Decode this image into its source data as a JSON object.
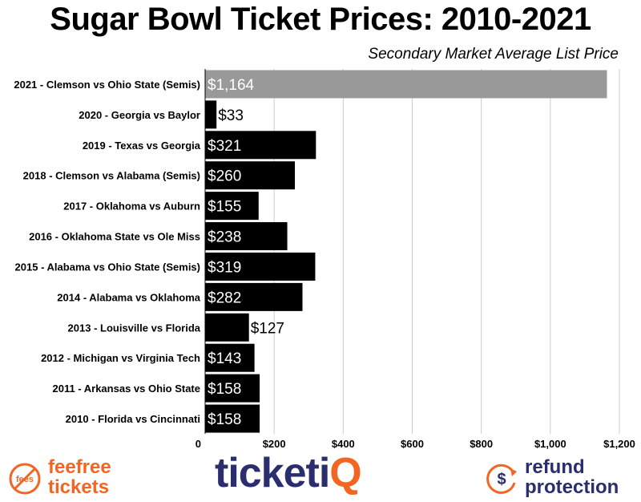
{
  "chart_data": {
    "type": "bar",
    "orientation": "horizontal",
    "title": "Sugar Bowl Ticket Prices: 2010-2021",
    "subtitle": "Secondary Market Average List Price",
    "categories": [
      "2021 - Clemson vs Ohio State (Semis)",
      "2020 - Georgia vs Baylor",
      "2019 - Texas vs Georgia",
      "2018 - Clemson vs Alabama (Semis)",
      "2017 - Oklahoma vs Auburn",
      "2016 - Oklahoma State vs Ole Miss",
      "2015 - Alabama vs Ohio State (Semis)",
      "2014 - Alabama vs Oklahoma",
      "2013 - Louisville vs Florida",
      "2012 - Michigan vs Virginia Tech",
      "2011 - Arkansas vs Ohio State",
      "2010 - Florida vs Cincinnati"
    ],
    "values": [
      1164,
      33,
      321,
      260,
      155,
      238,
      319,
      282,
      127,
      143,
      158,
      158
    ],
    "value_labels": [
      "$1,164",
      "$33",
      "$321",
      "$260",
      "$155",
      "$238",
      "$319",
      "$282",
      "$127",
      "$143",
      "$158",
      "$158"
    ],
    "xlim": [
      0,
      1200
    ],
    "xticks": [
      0,
      200,
      400,
      600,
      800,
      1000,
      1200
    ],
    "xtick_labels": [
      "0",
      "$200",
      "$400",
      "$600",
      "$800",
      "$1,000",
      "$1,200"
    ],
    "grid": true,
    "colors": {
      "default_bar": "#000000",
      "highlight_bar": "#999999",
      "grid": "#cccccc"
    },
    "highlight_index": 0
  },
  "footer": {
    "fee_line1": "feefree",
    "fee_line2": "tickets",
    "fee_icon_text": "fees",
    "ticketiq_main": "ticketi",
    "ticketiq_q": "Q",
    "refund_line1": "refund",
    "refund_line2": "protection",
    "refund_icon": "dollar-icon"
  }
}
